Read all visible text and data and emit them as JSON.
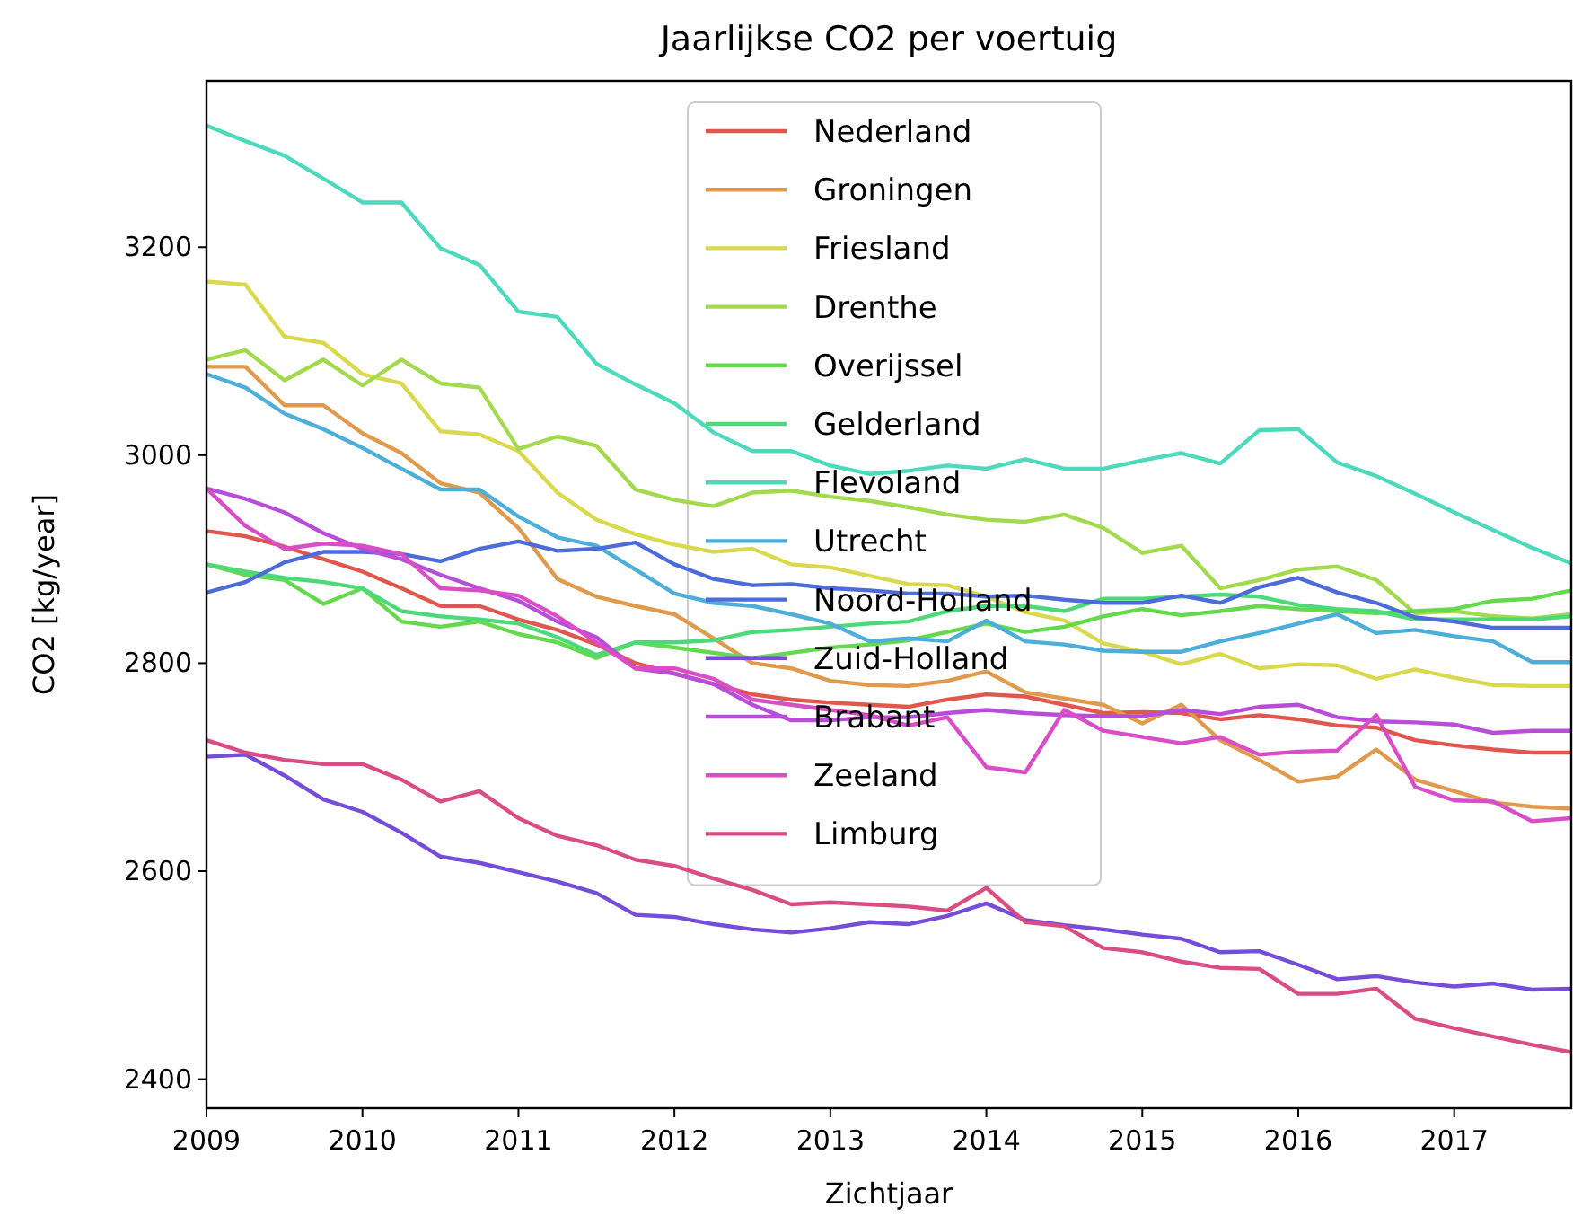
{
  "chart_data": {
    "type": "line",
    "title": "Jaarlijkse CO2 per voertuig",
    "xlabel": "Zichtjaar",
    "ylabel": "CO2 [kg/year]",
    "x": [
      2009,
      2009.25,
      2009.5,
      2009.75,
      2010,
      2010.25,
      2010.5,
      2010.75,
      2011,
      2011.25,
      2011.5,
      2011.75,
      2012,
      2012.25,
      2012.5,
      2012.75,
      2013,
      2013.25,
      2013.5,
      2013.75,
      2014,
      2014.25,
      2014.5,
      2014.75,
      2015,
      2015.25,
      2015.5,
      2015.75,
      2016,
      2016.25,
      2016.5,
      2016.75,
      2017,
      2017.25,
      2017.5,
      2017.75
    ],
    "xlim": [
      2009,
      2017.75
    ],
    "xticks": [
      2009,
      2010,
      2011,
      2012,
      2013,
      2014,
      2015,
      2016,
      2017
    ],
    "ylim": [
      2372,
      3360
    ],
    "yticks": [
      2400,
      2600,
      2800,
      3000,
      3200
    ],
    "grid": false,
    "legend": "top",
    "line_style": "solid",
    "marker": "none",
    "series": [
      {
        "name": "Nederland",
        "color": "#e0574d",
        "values": [
          2927,
          2922,
          2912,
          2900,
          2888,
          2872,
          2855,
          2855,
          2842,
          2832,
          2818,
          2800,
          2790,
          2780,
          2770,
          2765,
          2762,
          2760,
          2758,
          2765,
          2770,
          2768,
          2760,
          2752,
          2753,
          2752,
          2746,
          2750,
          2746,
          2740,
          2738,
          2726,
          2721,
          2717,
          2714,
          2714
        ]
      },
      {
        "name": "Groningen",
        "color": "#e09a4d",
        "values": [
          3085,
          3085,
          3048,
          3048,
          3021,
          3002,
          2973,
          2964,
          2930,
          2881,
          2864,
          2855,
          2847,
          2824,
          2800,
          2795,
          2783,
          2779,
          2778,
          2783,
          2792,
          2772,
          2766,
          2760,
          2742,
          2760,
          2726,
          2707,
          2686,
          2691,
          2717,
          2688,
          2677,
          2666,
          2662,
          2660
        ]
      },
      {
        "name": "Friesland",
        "color": "#d9d94d",
        "values": [
          3167,
          3164,
          3114,
          3108,
          3078,
          3069,
          3023,
          3020,
          3004,
          2964,
          2938,
          2924,
          2914,
          2907,
          2910,
          2895,
          2892,
          2884,
          2876,
          2875,
          2864,
          2849,
          2841,
          2819,
          2811,
          2799,
          2809,
          2795,
          2799,
          2798,
          2785,
          2794,
          2786,
          2779,
          2778,
          2778
        ]
      },
      {
        "name": "Drenthe",
        "color": "#a3d94d",
        "values": [
          3092,
          3101,
          3072,
          3092,
          3067,
          3092,
          3069,
          3065,
          3006,
          3018,
          3009,
          2967,
          2957,
          2951,
          2964,
          2966,
          2960,
          2956,
          2950,
          2943,
          2938,
          2936,
          2943,
          2930,
          2906,
          2913,
          2872,
          2880,
          2890,
          2893,
          2880,
          2848,
          2850,
          2845,
          2843,
          2847
        ]
      },
      {
        "name": "Overijssel",
        "color": "#64d94d",
        "values": [
          2895,
          2885,
          2880,
          2857,
          2872,
          2840,
          2835,
          2840,
          2828,
          2820,
          2805,
          2820,
          2815,
          2810,
          2805,
          2810,
          2815,
          2818,
          2822,
          2830,
          2838,
          2830,
          2835,
          2845,
          2852,
          2846,
          2850,
          2855,
          2852,
          2850,
          2848,
          2850,
          2852,
          2860,
          2862,
          2870
        ]
      },
      {
        "name": "Gelderland",
        "color": "#4dd97a",
        "values": [
          2895,
          2888,
          2882,
          2878,
          2872,
          2850,
          2845,
          2842,
          2838,
          2825,
          2808,
          2820,
          2820,
          2822,
          2830,
          2832,
          2835,
          2838,
          2840,
          2850,
          2855,
          2855,
          2850,
          2862,
          2862,
          2864,
          2866,
          2864,
          2856,
          2852,
          2850,
          2842,
          2842,
          2842,
          2842,
          2845
        ]
      },
      {
        "name": "Flevoland",
        "color": "#4dd9bc",
        "values": [
          3317,
          3302,
          3288,
          3266,
          3243,
          3243,
          3199,
          3183,
          3138,
          3133,
          3088,
          3068,
          3050,
          3022,
          3004,
          3004,
          2990,
          2982,
          2985,
          2990,
          2987,
          2996,
          2987,
          2987,
          2995,
          3002,
          2992,
          3024,
          3025,
          2993,
          2980,
          2963,
          2945,
          2928,
          2911,
          2896
        ]
      },
      {
        "name": "Utrecht",
        "color": "#4daed9",
        "values": [
          3078,
          3065,
          3040,
          3025,
          3007,
          2987,
          2967,
          2967,
          2941,
          2921,
          2913,
          2890,
          2867,
          2858,
          2855,
          2847,
          2838,
          2821,
          2824,
          2821,
          2841,
          2821,
          2818,
          2812,
          2811,
          2811,
          2821,
          2829,
          2838,
          2847,
          2829,
          2832,
          2826,
          2821,
          2801,
          2801
        ]
      },
      {
        "name": "Noord-Holland",
        "color": "#4d6bd9",
        "values": [
          2868,
          2878,
          2897,
          2907,
          2907,
          2905,
          2898,
          2910,
          2917,
          2908,
          2910,
          2916,
          2895,
          2881,
          2875,
          2876,
          2872,
          2870,
          2867,
          2867,
          2864,
          2865,
          2861,
          2858,
          2858,
          2865,
          2858,
          2873,
          2882,
          2868,
          2858,
          2844,
          2840,
          2834,
          2834,
          2834
        ]
      },
      {
        "name": "Zuid-Holland",
        "color": "#764dd9",
        "values": [
          2710,
          2712,
          2692,
          2669,
          2657,
          2637,
          2614,
          2608,
          2599,
          2590,
          2579,
          2558,
          2556,
          2549,
          2544,
          2541,
          2545,
          2551,
          2549,
          2557,
          2569,
          2553,
          2548,
          2544,
          2539,
          2535,
          2522,
          2523,
          2510,
          2496,
          2499,
          2493,
          2489,
          2492,
          2486,
          2487
        ]
      },
      {
        "name": "Brabant",
        "color": "#b84dd9",
        "values": [
          2968,
          2958,
          2945,
          2925,
          2910,
          2900,
          2885,
          2872,
          2860,
          2840,
          2825,
          2795,
          2790,
          2780,
          2760,
          2745,
          2745,
          2748,
          2748,
          2752,
          2755,
          2752,
          2750,
          2749,
          2749,
          2755,
          2751,
          2758,
          2760,
          2748,
          2744,
          2743,
          2741,
          2733,
          2735,
          2735
        ]
      },
      {
        "name": "Zeeland",
        "color": "#d94dc7",
        "values": [
          2968,
          2932,
          2910,
          2915,
          2913,
          2905,
          2872,
          2870,
          2865,
          2845,
          2820,
          2795,
          2795,
          2785,
          2765,
          2760,
          2755,
          2750,
          2740,
          2748,
          2700,
          2695,
          2755,
          2735,
          2729,
          2723,
          2729,
          2712,
          2715,
          2716,
          2750,
          2681,
          2668,
          2667,
          2648,
          2651
        ]
      },
      {
        "name": "Limburg",
        "color": "#d94d85",
        "values": [
          2726,
          2714,
          2707,
          2703,
          2703,
          2688,
          2667,
          2677,
          2651,
          2634,
          2625,
          2611,
          2605,
          2593,
          2582,
          2568,
          2570,
          2568,
          2566,
          2562,
          2584,
          2551,
          2547,
          2526,
          2522,
          2513,
          2507,
          2506,
          2482,
          2482,
          2487,
          2458,
          2449,
          2441,
          2433,
          2426
        ]
      }
    ]
  }
}
